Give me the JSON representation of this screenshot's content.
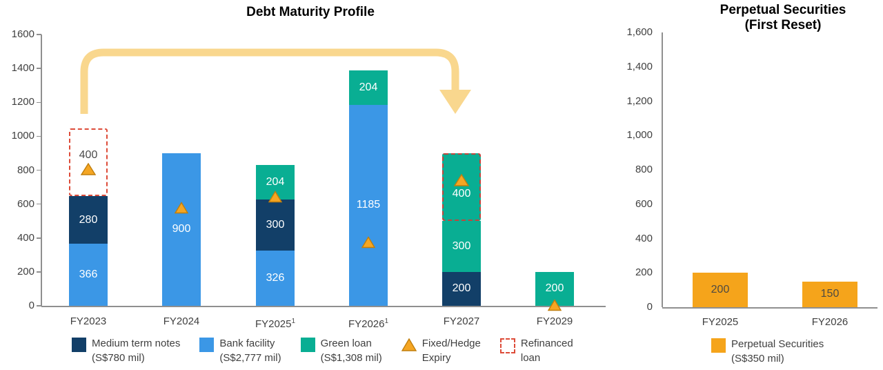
{
  "colors": {
    "title": "#17497F",
    "axis_text": "#3f3f3f",
    "axis_line": "#8f8f8f",
    "medium_term_notes": "#123F68",
    "bank_facility": "#3B97E6",
    "green_loan": "#09AE93",
    "perpetual": "#F5A41B",
    "marker_fill": "#F5A623",
    "marker_stroke": "#C07E0C",
    "refinanced_border": "#DD4B38",
    "refinanced_border_on_green": "#C1453C",
    "arrow": "#F9D78E",
    "bar_label_light": "#FFFFFF",
    "bar_label_dark": "#4A4A4A",
    "perp_label": "#4E4A42"
  },
  "chart_data": [
    {
      "type": "bar",
      "variant": "stacked",
      "title": "Debt Maturity Profile",
      "ylim": [
        0,
        1600
      ],
      "y_ticks": [
        "1600",
        "1400",
        "1200",
        "1000",
        "800",
        "600",
        "400",
        "200",
        "0"
      ],
      "grid": false,
      "legend_position": "bottom",
      "categories": [
        {
          "label": "FY2023",
          "sup": ""
        },
        {
          "label": "FY2024",
          "sup": ""
        },
        {
          "label": "FY2025",
          "sup": "1"
        },
        {
          "label": "FY2026",
          "sup": "1"
        },
        {
          "label": "FY2027",
          "sup": ""
        },
        {
          "label": "FY2029",
          "sup": ""
        }
      ],
      "bars": [
        {
          "category": "FY2023",
          "segments": [
            {
              "key": "bank_facility",
              "value": 366,
              "label": "366"
            },
            {
              "key": "medium_term_notes",
              "value": 280,
              "label": "280"
            },
            {
              "key": "refinanced_empty",
              "value": 400,
              "label": "400",
              "dashed": true,
              "empty": true,
              "content": "label-marker"
            }
          ]
        },
        {
          "category": "FY2024",
          "segments": [
            {
              "key": "bank_facility",
              "value": 900,
              "label": "900"
            }
          ],
          "marker_at": 580
        },
        {
          "category": "FY2025",
          "segments": [
            {
              "key": "bank_facility",
              "value": 326,
              "label": "326"
            },
            {
              "key": "medium_term_notes",
              "value": 300,
              "label": "300"
            },
            {
              "key": "green_loan",
              "value": 204,
              "label": "204"
            }
          ],
          "marker_at": 645
        },
        {
          "category": "FY2026",
          "segments": [
            {
              "key": "bank_facility",
              "value": 1185,
              "label": "1185"
            },
            {
              "key": "green_loan",
              "value": 204,
              "label": "204"
            }
          ],
          "marker_at": 375
        },
        {
          "category": "FY2027",
          "segments": [
            {
              "key": "medium_term_notes",
              "value": 200,
              "label": "200"
            },
            {
              "key": "green_loan",
              "value": 300,
              "label": "300"
            },
            {
              "key": "green_loan",
              "value": 400,
              "label": "400",
              "dashed": true,
              "content": "marker-label"
            }
          ]
        },
        {
          "category": "FY2029",
          "segments": [
            {
              "key": "green_loan",
              "value": 200,
              "label": "200"
            }
          ],
          "marker_at": 5
        }
      ],
      "legend": [
        {
          "swatch": "medium_term_notes",
          "label": "Medium term notes",
          "sublabel": "(S$780 mil)"
        },
        {
          "swatch": "bank_facility",
          "label": "Bank facility",
          "sublabel": "(S$2,777 mil)"
        },
        {
          "swatch": "green_loan",
          "label": "Green loan",
          "sublabel": "(S$1,308 mil)"
        },
        {
          "swatch": "triangle",
          "label": "Fixed/Hedge",
          "sublabel": "Expiry"
        },
        {
          "swatch": "dashed",
          "label": "Refinanced",
          "sublabel": "loan"
        }
      ]
    },
    {
      "type": "bar",
      "variant": "simple",
      "title_lines": [
        "Perpetual Securities",
        "(First Reset)"
      ],
      "ylim": [
        0,
        1600
      ],
      "y_ticks": [
        "1,600",
        "1,400",
        "1,200",
        "1,000",
        "800",
        "600",
        "400",
        "200",
        "0"
      ],
      "grid": false,
      "legend_position": "bottom",
      "categories": [
        "FY2025",
        "FY2026"
      ],
      "values": [
        200,
        150
      ],
      "labels": [
        "200",
        "150"
      ],
      "legend": [
        {
          "swatch": "perpetual",
          "label": "Perpetual Securities",
          "sublabel": "(S$350 mil)"
        }
      ]
    }
  ]
}
